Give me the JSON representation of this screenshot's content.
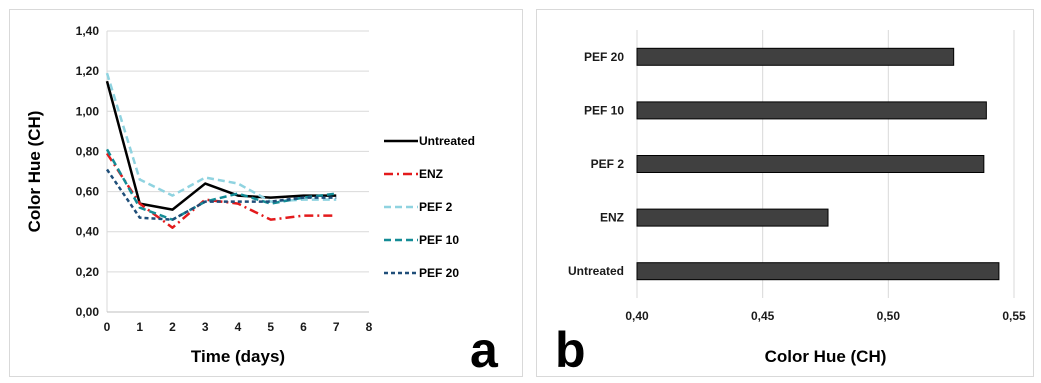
{
  "panels": {
    "a": {
      "letter": "a"
    },
    "b": {
      "letter": "b"
    }
  },
  "chart_data": [
    {
      "type": "line",
      "xlabel": "Time (days)",
      "ylabel": "Color Hue (CH)",
      "x": [
        0,
        1,
        2,
        3,
        4,
        5,
        6,
        7
      ],
      "xlim": [
        0,
        8
      ],
      "xticks": [
        "0",
        "1",
        "2",
        "3",
        "4",
        "5",
        "6",
        "7",
        "8"
      ],
      "ylim": [
        0,
        1.4
      ],
      "yticks": [
        "0,00",
        "0,20",
        "0,40",
        "0,60",
        "0,80",
        "1,00",
        "1,20",
        "1,40"
      ],
      "grid": "horizontal",
      "legend_position": "right",
      "series": [
        {
          "name": "Untreated",
          "color": "#000000",
          "dash": "solid",
          "values": [
            1.15,
            0.54,
            0.51,
            0.64,
            0.58,
            0.57,
            0.58,
            0.58
          ]
        },
        {
          "name": "ENZ",
          "color": "#e31a1c",
          "dash": "dashdot",
          "values": [
            0.79,
            0.54,
            0.42,
            0.56,
            0.54,
            0.46,
            0.48,
            0.48
          ]
        },
        {
          "name": "PEF 2",
          "color": "#8fd3e0",
          "dash": "dash",
          "values": [
            1.19,
            0.66,
            0.58,
            0.67,
            0.64,
            0.55,
            0.56,
            0.56
          ]
        },
        {
          "name": "PEF 10",
          "color": "#148c96",
          "dash": "dash",
          "values": [
            0.81,
            0.52,
            0.46,
            0.55,
            0.59,
            0.54,
            0.57,
            0.59
          ]
        },
        {
          "name": "PEF 20",
          "color": "#1f4e79",
          "dash": "dashfine",
          "values": [
            0.71,
            0.47,
            0.46,
            0.55,
            0.55,
            0.55,
            0.57,
            0.57
          ]
        }
      ]
    },
    {
      "type": "bar",
      "orientation": "horizontal",
      "xlabel": "Color Hue (CH)",
      "ylabel": "",
      "categories": [
        "Untreated",
        "ENZ",
        "PEF 2",
        "PEF 10",
        "PEF 20"
      ],
      "values": [
        0.544,
        0.476,
        0.538,
        0.539,
        0.526
      ],
      "xlim": [
        0.4,
        0.55
      ],
      "xticks": [
        "0,40",
        "0,45",
        "0,50",
        "0,55"
      ],
      "grid": "vertical",
      "bar_color": "#404040"
    }
  ]
}
